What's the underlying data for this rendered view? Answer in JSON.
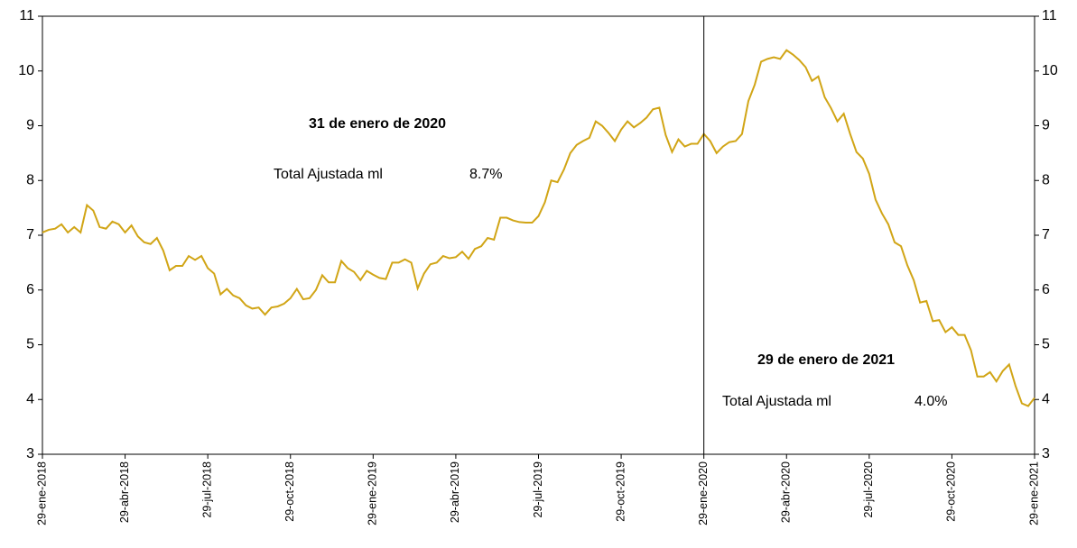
{
  "chart_data": {
    "type": "line",
    "categories": [
      "29-ene-2018",
      null,
      null,
      null,
      null,
      null,
      null,
      null,
      null,
      null,
      null,
      null,
      null,
      "29-abr-2018",
      null,
      null,
      null,
      null,
      null,
      null,
      null,
      null,
      null,
      null,
      null,
      null,
      "29-jul-2018",
      null,
      null,
      null,
      null,
      null,
      null,
      null,
      null,
      null,
      null,
      null,
      null,
      "29-oct-2018",
      null,
      null,
      null,
      null,
      null,
      null,
      null,
      null,
      null,
      null,
      null,
      null,
      "29-ene-2019",
      null,
      null,
      null,
      null,
      null,
      null,
      null,
      null,
      null,
      null,
      null,
      null,
      "29-abr-2019",
      null,
      null,
      null,
      null,
      null,
      null,
      null,
      null,
      null,
      null,
      null,
      null,
      "29-jul-2019",
      null,
      null,
      null,
      null,
      null,
      null,
      null,
      null,
      null,
      null,
      null,
      null,
      "29-oct-2019",
      null,
      null,
      null,
      null,
      null,
      null,
      null,
      null,
      null,
      null,
      null,
      null,
      "29-ene-2020",
      null,
      null,
      null,
      null,
      null,
      null,
      null,
      null,
      null,
      null,
      null,
      null,
      "29-abr-2020",
      null,
      null,
      null,
      null,
      null,
      null,
      null,
      null,
      null,
      null,
      null,
      null,
      "29-jul-2020",
      null,
      null,
      null,
      null,
      null,
      null,
      null,
      null,
      null,
      null,
      null,
      null,
      "29-oct-2020",
      null,
      null,
      null,
      null,
      null,
      null,
      null,
      null,
      null,
      null,
      null,
      null,
      "29-ene-2021"
    ],
    "series": [
      {
        "color": "#d1a516",
        "values": [
          7.05,
          7.1,
          7.12,
          7.2,
          7.05,
          7.15,
          7.05,
          7.55,
          7.45,
          7.15,
          7.12,
          7.25,
          7.2,
          7.05,
          7.18,
          6.98,
          6.87,
          6.84,
          6.95,
          6.72,
          6.36,
          6.44,
          6.44,
          6.62,
          6.55,
          6.62,
          6.4,
          6.3,
          5.92,
          6.02,
          5.9,
          5.85,
          5.72,
          5.66,
          5.68,
          5.55,
          5.68,
          5.7,
          5.75,
          5.85,
          6.02,
          5.83,
          5.85,
          6.0,
          6.27,
          6.14,
          6.14,
          6.53,
          6.4,
          6.33,
          6.18,
          6.35,
          6.28,
          6.22,
          6.2,
          6.5,
          6.5,
          6.56,
          6.5,
          6.03,
          6.3,
          6.47,
          6.5,
          6.62,
          6.58,
          6.6,
          6.7,
          6.57,
          6.75,
          6.8,
          6.95,
          6.92,
          7.32,
          7.32,
          7.27,
          7.24,
          7.23,
          7.23,
          7.35,
          7.6,
          8.0,
          7.97,
          8.2,
          8.5,
          8.65,
          8.72,
          8.78,
          9.08,
          9.0,
          8.87,
          8.72,
          8.93,
          9.08,
          8.97,
          9.05,
          9.15,
          9.3,
          9.33,
          8.83,
          8.52,
          8.75,
          8.62,
          8.67,
          8.67,
          8.85,
          8.72,
          8.5,
          8.62,
          8.7,
          8.72,
          8.85,
          9.45,
          9.75,
          10.17,
          10.22,
          10.25,
          10.22,
          10.38,
          10.3,
          10.2,
          10.07,
          9.82,
          9.9,
          9.52,
          9.32,
          9.08,
          9.22,
          8.85,
          8.52,
          8.4,
          8.12,
          7.65,
          7.4,
          7.2,
          6.87,
          6.8,
          6.45,
          6.18,
          5.77,
          5.8,
          5.43,
          5.45,
          5.23,
          5.32,
          5.18,
          5.18,
          4.9,
          4.42,
          4.42,
          4.5,
          4.33,
          4.52,
          4.64,
          4.25,
          3.93,
          3.88,
          4.03
        ]
      }
    ],
    "ylim": [
      3,
      11
    ],
    "yticks": [
      3,
      4,
      5,
      6,
      7,
      8,
      9,
      10,
      11
    ],
    "y2lim": [
      3,
      11
    ],
    "y2ticks": [
      3,
      4,
      5,
      6,
      7,
      8,
      9,
      10,
      11
    ],
    "vline": "29-ene-2020",
    "annotations": [
      {
        "title": "31 de enero de 2020",
        "label": "Total Ajustada ml",
        "value": "8.7%"
      },
      {
        "title": "29 de enero de 2021",
        "label": "Total Ajustada ml",
        "value": "4.0%"
      }
    ]
  }
}
